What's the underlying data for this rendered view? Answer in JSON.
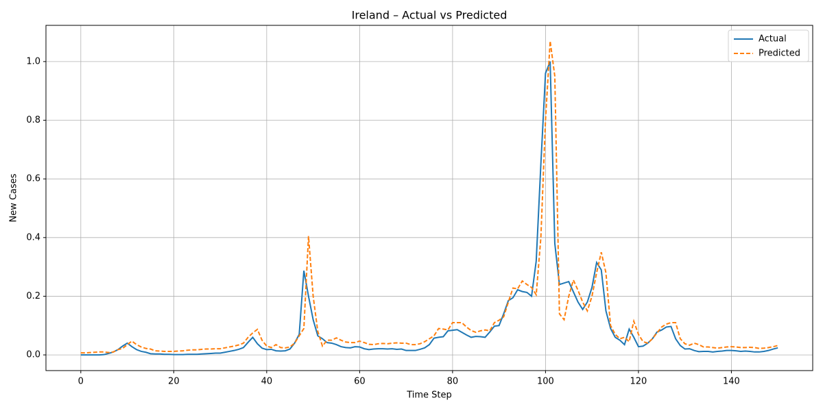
{
  "chart_data": {
    "type": "line",
    "title": "Ireland – Actual vs Predicted",
    "x_label": "Time Step",
    "y_label": "New Cases",
    "x": [
      0,
      1,
      2,
      3,
      4,
      5,
      6,
      7,
      8,
      9,
      10,
      11,
      12,
      13,
      14,
      15,
      16,
      17,
      18,
      19,
      20,
      21,
      22,
      23,
      24,
      25,
      26,
      27,
      28,
      29,
      30,
      31,
      32,
      33,
      34,
      35,
      36,
      37,
      38,
      39,
      40,
      41,
      42,
      43,
      44,
      45,
      46,
      47,
      48,
      49,
      50,
      51,
      52,
      53,
      54,
      55,
      56,
      57,
      58,
      59,
      60,
      61,
      62,
      63,
      64,
      65,
      66,
      67,
      68,
      69,
      70,
      71,
      72,
      73,
      74,
      75,
      76,
      77,
      78,
      79,
      80,
      81,
      82,
      83,
      84,
      85,
      86,
      87,
      88,
      89,
      90,
      91,
      92,
      93,
      94,
      95,
      96,
      97,
      98,
      99,
      100,
      101,
      102,
      103,
      104,
      105,
      106,
      107,
      108,
      109,
      110,
      111,
      112,
      113,
      114,
      115,
      116,
      117,
      118,
      119,
      120,
      121,
      122,
      123,
      124,
      125,
      126,
      127,
      128,
      129,
      130,
      131,
      132,
      133,
      134,
      135,
      136,
      137,
      138,
      139,
      140,
      141,
      142,
      143,
      144,
      145,
      146,
      147,
      148,
      149,
      150
    ],
    "series": [
      {
        "name": "Actual",
        "color": "#1f77b4",
        "dash": "solid",
        "values": [
          0,
          0,
          0,
          0,
          0,
          0.001,
          0.005,
          0.01,
          0.018,
          0.03,
          0.04,
          0.028,
          0.018,
          0.012,
          0.009,
          0.004,
          0.003,
          0.003,
          0.002,
          0.002,
          0.001,
          0.001,
          0.001,
          0.002,
          0.002,
          0.002,
          0.003,
          0.004,
          0.005,
          0.006,
          0.006,
          0.009,
          0.012,
          0.015,
          0.019,
          0.025,
          0.043,
          0.06,
          0.038,
          0.023,
          0.018,
          0.019,
          0.014,
          0.013,
          0.014,
          0.02,
          0.04,
          0.07,
          0.287,
          0.2,
          0.12,
          0.065,
          0.055,
          0.042,
          0.04,
          0.035,
          0.028,
          0.025,
          0.024,
          0.028,
          0.027,
          0.021,
          0.018,
          0.02,
          0.021,
          0.021,
          0.02,
          0.021,
          0.019,
          0.02,
          0.015,
          0.015,
          0.015,
          0.019,
          0.024,
          0.035,
          0.057,
          0.06,
          0.062,
          0.082,
          0.084,
          0.086,
          0.077,
          0.068,
          0.06,
          0.063,
          0.062,
          0.06,
          0.078,
          0.098,
          0.1,
          0.14,
          0.185,
          0.195,
          0.222,
          0.216,
          0.213,
          0.2,
          0.32,
          0.65,
          0.96,
          1.0,
          0.38,
          0.24,
          0.245,
          0.25,
          0.215,
          0.18,
          0.155,
          0.18,
          0.23,
          0.315,
          0.29,
          0.15,
          0.09,
          0.06,
          0.05,
          0.035,
          0.088,
          0.06,
          0.028,
          0.03,
          0.04,
          0.055,
          0.078,
          0.085,
          0.095,
          0.097,
          0.055,
          0.032,
          0.02,
          0.021,
          0.015,
          0.011,
          0.012,
          0.012,
          0.01,
          0.012,
          0.013,
          0.015,
          0.015,
          0.014,
          0.012,
          0.013,
          0.012,
          0.01,
          0.01,
          0.012,
          0.015,
          0.02,
          0.024
        ]
      },
      {
        "name": "Predicted",
        "color": "#ff7f0e",
        "dash": "dashed",
        "values": [
          0.007,
          0.007,
          0.008,
          0.009,
          0.01,
          0.01,
          0.008,
          0.01,
          0.018,
          0.022,
          0.035,
          0.047,
          0.035,
          0.027,
          0.022,
          0.02,
          0.014,
          0.013,
          0.012,
          0.012,
          0.012,
          0.013,
          0.014,
          0.016,
          0.017,
          0.017,
          0.019,
          0.02,
          0.02,
          0.021,
          0.021,
          0.024,
          0.027,
          0.03,
          0.034,
          0.04,
          0.06,
          0.075,
          0.087,
          0.05,
          0.03,
          0.025,
          0.035,
          0.025,
          0.024,
          0.027,
          0.04,
          0.065,
          0.09,
          0.405,
          0.2,
          0.08,
          0.03,
          0.05,
          0.05,
          0.058,
          0.05,
          0.044,
          0.042,
          0.042,
          0.047,
          0.042,
          0.036,
          0.035,
          0.038,
          0.039,
          0.038,
          0.04,
          0.041,
          0.04,
          0.04,
          0.035,
          0.035,
          0.038,
          0.045,
          0.055,
          0.065,
          0.09,
          0.088,
          0.085,
          0.11,
          0.11,
          0.11,
          0.095,
          0.083,
          0.077,
          0.082,
          0.085,
          0.082,
          0.11,
          0.118,
          0.13,
          0.18,
          0.228,
          0.225,
          0.252,
          0.24,
          0.23,
          0.205,
          0.4,
          0.8,
          1.07,
          0.95,
          0.14,
          0.12,
          0.2,
          0.255,
          0.22,
          0.18,
          0.15,
          0.2,
          0.28,
          0.35,
          0.28,
          0.1,
          0.07,
          0.055,
          0.06,
          0.045,
          0.115,
          0.07,
          0.045,
          0.04,
          0.055,
          0.075,
          0.095,
          0.105,
          0.11,
          0.11,
          0.055,
          0.038,
          0.033,
          0.04,
          0.035,
          0.027,
          0.027,
          0.025,
          0.023,
          0.025,
          0.027,
          0.028,
          0.027,
          0.025,
          0.025,
          0.026,
          0.025,
          0.022,
          0.023,
          0.025,
          0.028,
          0.032
        ]
      }
    ],
    "xlim": [
      -7.5,
      157.5
    ],
    "xticks": [
      0,
      20,
      40,
      60,
      80,
      100,
      120,
      140
    ],
    "ylim": [
      -0.0535,
      1.1235
    ],
    "yticks": [
      {
        "value": 0,
        "label": "0.0"
      },
      0.2,
      0.4,
      0.6,
      0.8,
      {
        "value": 1,
        "label": "1.0"
      }
    ],
    "grid": true,
    "legend": "upper right"
  }
}
